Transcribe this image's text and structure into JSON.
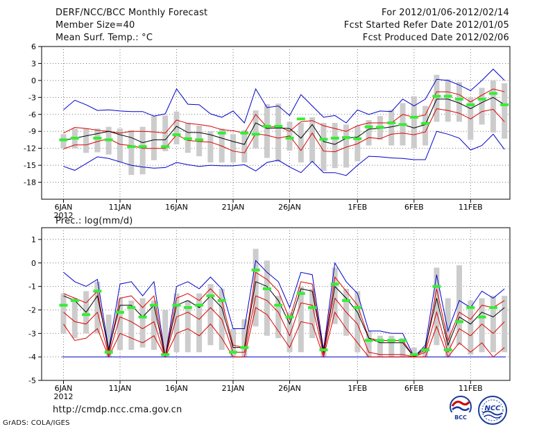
{
  "header": {
    "title": "DERF/NCC/BCC Monthly Forecast",
    "member_size": "Member Size=40",
    "variable": "Mean Surf. Temp.: °C",
    "period": "For 2012/01/06-2012/02/14",
    "fcst_started": "Fcst Started Refer Date 2012/01/05",
    "fcst_produced": "Fcst Produced Date 2012/02/06"
  },
  "lower_label": "Prec.: log(mm/d)",
  "footer": {
    "url": "http://cmdp.ncc.cma.gov.cn",
    "grads": "GrADS: COLA/IGES",
    "logo_bcc": "BCC",
    "logo_ncc": "NCC"
  },
  "colors": {
    "ensemble_bar": "#cccccc",
    "obs_marker": "#33ee33",
    "mean_line": "#000000",
    "spread_line": "#dd0000",
    "extreme_line": "#0000cc",
    "grid": "#777777"
  },
  "chart_data": [
    {
      "type": "line",
      "name": "temperature",
      "title": "Mean Surf. Temp.: °C",
      "x_ticks": [
        "6JAN",
        "11JAN",
        "16JAN",
        "21JAN",
        "26JAN",
        "1FEB",
        "6FEB",
        "11FEB"
      ],
      "x_tick_days": [
        0,
        5,
        10,
        15,
        20,
        26,
        31,
        36
      ],
      "x_year_label": "2012",
      "ylim": [
        -21,
        6
      ],
      "y_ticks": [
        "6",
        "3",
        "0",
        "-3",
        "-6",
        "-9",
        "-12",
        "-15",
        "-18"
      ],
      "y_tick_values": [
        6,
        3,
        0,
        -3,
        -6,
        -9,
        -12,
        -15,
        -18
      ],
      "series": [
        {
          "name": "max",
          "color": "#0000cc",
          "values": [
            -5.2,
            -3.5,
            -4.3,
            -5.3,
            -5.2,
            -5.4,
            -5.5,
            -5.5,
            -6.3,
            -5.9,
            -1.5,
            -4.2,
            -4.3,
            -5.9,
            -6.5,
            -5.4,
            -7.5,
            -1.5,
            -4.8,
            -4.5,
            -6.2,
            -2.5,
            -4.5,
            -6.5,
            -6.2,
            -7.5,
            -5.2,
            -6,
            -5.4,
            -5.5,
            -3.3,
            -4.5,
            -3.3,
            0.2,
            0,
            -0.8,
            -1.8,
            0,
            2,
            0
          ]
        },
        {
          "name": "upper",
          "color": "#dd0000",
          "values": [
            -9.3,
            -8.3,
            -8.5,
            -8.8,
            -9,
            -9.3,
            -9,
            -9,
            -9.1,
            -9.3,
            -7,
            -7.6,
            -7.8,
            -8.1,
            -8.7,
            -8.9,
            -9.3,
            -6,
            -8.3,
            -8.1,
            -9,
            -7.3,
            -7.1,
            -8,
            -8.5,
            -9,
            -8,
            -7.5,
            -7.5,
            -7.5,
            -6,
            -6.5,
            -6.1,
            -2,
            -2,
            -2.5,
            -3.8,
            -2.6,
            -1.5,
            -2
          ]
        },
        {
          "name": "mean",
          "color": "#000000",
          "values": [
            -10.6,
            -10.2,
            -9.8,
            -9.4,
            -9,
            -9.6,
            -10.1,
            -11,
            -10.5,
            -10.5,
            -8.1,
            -9.2,
            -9.2,
            -9.6,
            -10.2,
            -10.8,
            -11.3,
            -7.5,
            -8.5,
            -8.4,
            -8.5,
            -10.2,
            -7.8,
            -10.8,
            -11.3,
            -10.2,
            -10,
            -8.6,
            -8.5,
            -8.2,
            -7.8,
            -8.4,
            -7.8,
            -3.3,
            -3.3,
            -4,
            -5,
            -3.9,
            -3,
            -4.3
          ]
        },
        {
          "name": "lower",
          "color": "#dd0000",
          "values": [
            -12.1,
            -11.4,
            -11.4,
            -10.8,
            -10.3,
            -11.3,
            -11.5,
            -12,
            -12,
            -12,
            -9.6,
            -10.6,
            -10.8,
            -10.9,
            -11.6,
            -12.5,
            -12.8,
            -9.4,
            -9.7,
            -10.2,
            -9.8,
            -12.4,
            -9.3,
            -12.5,
            -12.6,
            -11.8,
            -11.2,
            -10.1,
            -10.3,
            -9.5,
            -9.3,
            -9.6,
            -9.1,
            -5,
            -5.3,
            -5.8,
            -6.8,
            -5.5,
            -5.1,
            -7.3
          ]
        },
        {
          "name": "min",
          "color": "#0000cc",
          "values": [
            -15.2,
            -15.9,
            -14.7,
            -13.5,
            -13.8,
            -14.4,
            -15,
            -15.3,
            -15.5,
            -15.4,
            -14.5,
            -14.9,
            -15.2,
            -15,
            -15.1,
            -15.1,
            -14.9,
            -16,
            -14.5,
            -14.1,
            -15.3,
            -16.3,
            -14.3,
            -16.3,
            -16.3,
            -16.8,
            -15,
            -13.4,
            -13.5,
            -13.7,
            -13.8,
            -14,
            -14,
            -9,
            -9.5,
            -10.2,
            -12.3,
            -11.5,
            -9.5,
            -12.2
          ]
        }
      ],
      "ensemble_ranges": [
        [
          -12,
          -9.5
        ],
        [
          -12,
          -8.5
        ],
        [
          -12.8,
          -8.5
        ],
        [
          -12.7,
          -8.5
        ],
        [
          -13.1,
          -8.2
        ],
        [
          -14.5,
          -8.5
        ],
        [
          -16.7,
          -8.8
        ],
        [
          -16.6,
          -8.2
        ],
        [
          -14.1,
          -6.3
        ],
        [
          -12.5,
          -6.2
        ],
        [
          -11.3,
          -5.5
        ],
        [
          -12.8,
          -7.5
        ],
        [
          -13.4,
          -8
        ],
        [
          -14.5,
          -9
        ],
        [
          -14.5,
          -8.5
        ],
        [
          -14.5,
          -9.5
        ],
        [
          -14.5,
          -8.8
        ],
        [
          -12,
          -5.3
        ],
        [
          -13.7,
          -4.2
        ],
        [
          -14.4,
          -4.1
        ],
        [
          -12.4,
          -7.3
        ],
        [
          -14.5,
          -7.5
        ],
        [
          -14.5,
          -6.5
        ],
        [
          -16,
          -7.5
        ],
        [
          -15.5,
          -7.5
        ],
        [
          -15.4,
          -7.8
        ],
        [
          -14.3,
          -8
        ],
        [
          -11.5,
          -7
        ],
        [
          -10.5,
          -6.3
        ],
        [
          -11.5,
          -5.2
        ],
        [
          -11.5,
          -4
        ],
        [
          -12,
          -2.8
        ],
        [
          -11.5,
          -4.5
        ],
        [
          -7.3,
          1
        ],
        [
          -7.3,
          0.2
        ],
        [
          -7.3,
          -0.3
        ],
        [
          -10.5,
          -3
        ],
        [
          -7.8,
          -1.3
        ],
        [
          -9.2,
          0
        ],
        [
          -10.3,
          -0.5
        ]
      ],
      "observed": [
        -10.5,
        -10.2,
        null,
        -10.2,
        -10.5,
        null,
        -11.7,
        -11.7,
        null,
        -11.7,
        -9.6,
        -10.3,
        -10.5,
        null,
        -9.3,
        null,
        -9.3,
        -9.5,
        -8.1,
        -8.1,
        -10.2,
        -6.8,
        null,
        -10.4,
        -10.2,
        -10.1,
        -10.3,
        -8.2,
        -8.3,
        -7.5,
        -7.8,
        -6.5,
        -7.6,
        -2.8,
        -2.8,
        -3.3,
        -4.3,
        -3.3,
        -2.3,
        -4.3
      ]
    },
    {
      "type": "line",
      "name": "precipitation",
      "title": "Prec.: log(mm/d)",
      "x_ticks": [
        "6JAN",
        "11JAN",
        "16JAN",
        "21JAN",
        "26JAN",
        "1FEB",
        "6FEB",
        "11FEB"
      ],
      "x_tick_days": [
        0,
        5,
        10,
        15,
        20,
        26,
        31,
        36
      ],
      "x_year_label": "2012",
      "ylim": [
        -5,
        1.5
      ],
      "y_ticks": [
        "1",
        "0",
        "-1",
        "-2",
        "-3",
        "-4",
        "-5"
      ],
      "y_tick_values": [
        1,
        0,
        -1,
        -2,
        -3,
        -4,
        -5
      ],
      "series": [
        {
          "name": "max",
          "color": "#0000cc",
          "values": [
            -0.4,
            -0.8,
            -1,
            -0.7,
            -3.7,
            -0.9,
            -0.8,
            -1.4,
            -0.8,
            -4,
            -1,
            -0.8,
            -1.1,
            -0.6,
            -1.1,
            -2.8,
            -2.8,
            0.1,
            -0.4,
            -0.8,
            -1.9,
            -0.4,
            -0.5,
            -3.7,
            0,
            -0.8,
            -1.3,
            -2.9,
            -2.9,
            -3,
            -3,
            -4,
            -3.5,
            -0.5,
            -2.9,
            -1.6,
            -1.9,
            -1.2,
            -1.5,
            -1.1
          ]
        },
        {
          "name": "upper",
          "color": "#dd0000",
          "values": [
            -1.3,
            -1.5,
            -1.7,
            -1.2,
            -3.8,
            -1.5,
            -1.4,
            -1.9,
            -1.4,
            -4,
            -1.5,
            -1.3,
            -1.6,
            -1.1,
            -1.6,
            -3.5,
            -3.6,
            -0.4,
            -0.7,
            -1.2,
            -2.4,
            -0.8,
            -0.9,
            -3.8,
            -0.6,
            -1.2,
            -1.8,
            -3.2,
            -3.3,
            -3.3,
            -3.3,
            -4,
            -3.7,
            -1.1,
            -3.3,
            -2.1,
            -2.4,
            -1.8,
            -1.9,
            -1.6
          ]
        },
        {
          "name": "mean",
          "color": "#000000",
          "values": [
            -1.4,
            -1.6,
            -2.1,
            -1.4,
            -3.7,
            -1.8,
            -1.8,
            -2.3,
            -1.8,
            -4,
            -1.8,
            -1.6,
            -1.9,
            -1.4,
            -1.9,
            -3.6,
            -3.6,
            -0.8,
            -1,
            -1.6,
            -2.6,
            -1.1,
            -1.2,
            -3.8,
            -1,
            -1.5,
            -2.1,
            -3.2,
            -3.4,
            -3.4,
            -3.4,
            -4,
            -3.6,
            -1.5,
            -3.5,
            -2.3,
            -2.6,
            -2.1,
            -2.3,
            -1.9
          ]
        },
        {
          "name": "lower",
          "color": "#dd0000",
          "values": [
            -2.1,
            -2.5,
            -2.6,
            -2.1,
            -3.9,
            -2.3,
            -2.5,
            -2.8,
            -2.5,
            -4,
            -2.3,
            -2.1,
            -2.4,
            -1.9,
            -2.4,
            -3.8,
            -3.8,
            -1.4,
            -1.6,
            -2.1,
            -3.1,
            -1.7,
            -1.8,
            -3.9,
            -1.5,
            -2.1,
            -2.6,
            -3.8,
            -3.9,
            -3.9,
            -3.9,
            -4,
            -3.8,
            -2.1,
            -3.8,
            -2.8,
            -3.1,
            -2.6,
            -3,
            -2.5
          ]
        },
        {
          "name": "min",
          "color": "#dd0000",
          "values": [
            -2.6,
            -3.3,
            -3.2,
            -2.8,
            -4,
            -3,
            -3.2,
            -3.4,
            -3.1,
            -4,
            -3,
            -2.8,
            -3.1,
            -2.6,
            -3.2,
            -4,
            -4,
            -1.9,
            -2.2,
            -2.9,
            -3.6,
            -2.5,
            -2.6,
            -4,
            -2.1,
            -2.8,
            -3.4,
            -4,
            -4,
            -4,
            -4,
            -4,
            -4,
            -2.7,
            -4,
            -3.4,
            -3.8,
            -3.4,
            -4,
            -3.6
          ]
        }
      ],
      "baseline": {
        "value": -4,
        "color": "#0000cc"
      },
      "ensemble_ranges": [
        [
          -3,
          -1.3
        ],
        [
          -3.2,
          -1.5
        ],
        [
          -3,
          -1.2
        ],
        [
          -3,
          -0.8
        ],
        [
          -4,
          -2.2
        ],
        [
          -3.7,
          -1.5
        ],
        [
          -3.7,
          -1.6
        ],
        [
          -3.6,
          -1.5
        ],
        [
          -3.7,
          -1.6
        ],
        [
          -4,
          -2
        ],
        [
          -3.8,
          -1.3
        ],
        [
          -3.8,
          -1.6
        ],
        [
          -3.8,
          -1.3
        ],
        [
          -3.5,
          -0.9
        ],
        [
          -3.7,
          -1.1
        ],
        [
          -4,
          -2.8
        ],
        [
          -4,
          -2.4
        ],
        [
          -2.7,
          0.6
        ],
        [
          -3.1,
          0.1
        ],
        [
          -3.2,
          -1.4
        ],
        [
          -3.8,
          -2.1
        ],
        [
          -3.8,
          -1
        ],
        [
          -3.2,
          -1.1
        ],
        [
          -4,
          -3.5
        ],
        [
          -2.6,
          -0.2
        ],
        [
          -3.1,
          -1.1
        ],
        [
          -3.8,
          -1.2
        ],
        [
          -4,
          -2.9
        ],
        [
          -4,
          -3.1
        ],
        [
          -4,
          -3.1
        ],
        [
          -4,
          -3.2
        ],
        [
          -4,
          -3.6
        ],
        [
          -4,
          -3.6
        ],
        [
          -3.5,
          -0.2
        ],
        [
          -4,
          -1.5
        ],
        [
          -3.5,
          -0.1
        ],
        [
          -3.9,
          -1.6
        ],
        [
          -3.8,
          -1.5
        ],
        [
          -3.8,
          -1.4
        ],
        [
          -3.8,
          -1.4
        ]
      ],
      "observed": [
        -1.8,
        -1.6,
        -2.2,
        -1.2,
        -3.8,
        -2.1,
        -1.9,
        -2.3,
        -1.8,
        -3.9,
        -1.8,
        -1.9,
        -1.8,
        -1.4,
        -1.6,
        -3.8,
        -3.6,
        -0.3,
        -1.1,
        -1.8,
        -2.3,
        -1.3,
        -1.9,
        -3.7,
        -0.9,
        -1.6,
        -1.9,
        -3.3,
        -3.3,
        -3.3,
        -3.3,
        -3.9,
        -3.7,
        -1.0,
        -3.7,
        -2.5,
        -1.9,
        -2.3,
        -1.9,
        null
      ]
    }
  ]
}
